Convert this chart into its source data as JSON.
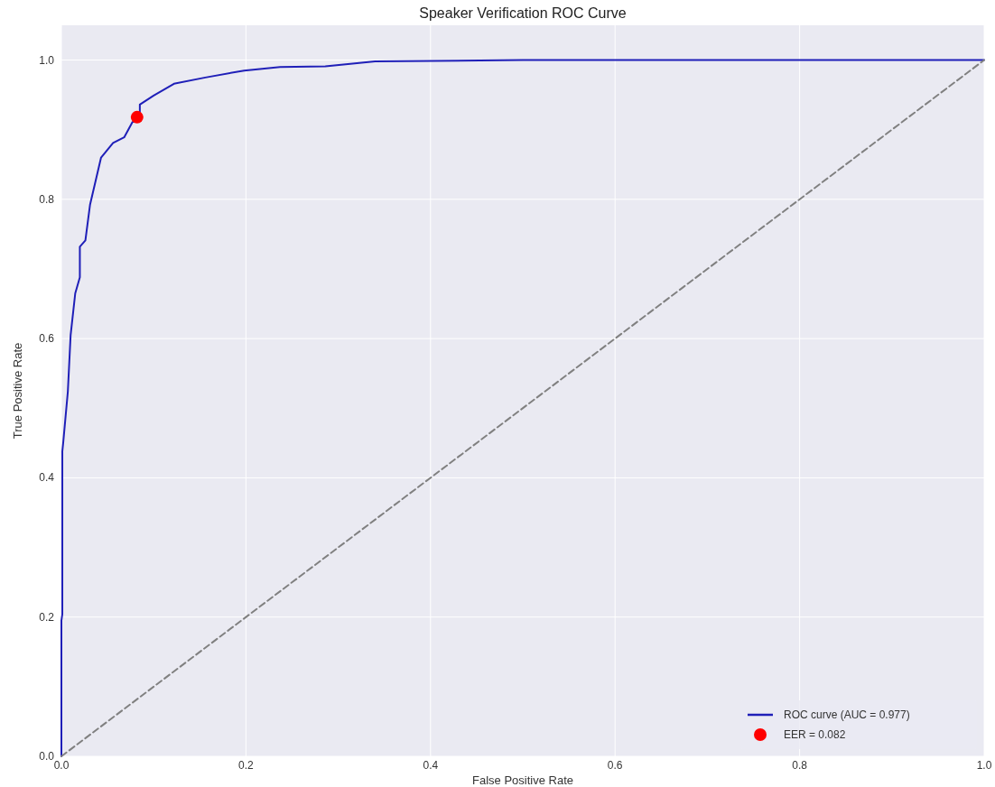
{
  "chart_data": {
    "type": "line",
    "title": "Speaker Verification ROC Curve",
    "xlabel": "False Positive Rate",
    "ylabel": "True Positive Rate",
    "xlim": [
      0,
      1
    ],
    "ylim": [
      0,
      1.05
    ],
    "xticks": [
      {
        "value": 0,
        "label": "0.0"
      },
      0.2,
      0.4,
      0.6,
      0.8,
      {
        "value": 1,
        "label": "1.0"
      }
    ],
    "yticks": [
      {
        "value": 0,
        "label": "0.0"
      },
      0.2,
      0.4,
      0.6,
      0.8,
      {
        "value": 1,
        "label": "1.0"
      }
    ],
    "grid": true,
    "legend": "bottom right",
    "series": [
      {
        "name": "ROC curve (AUC = 0.977)",
        "color": "#1f1fb8",
        "line_style": "solid",
        "x": [
          0,
          0,
          0.001,
          0.001,
          0.002,
          0.007,
          0.01,
          0.015,
          0.02,
          0.02,
          0.02,
          0.026,
          0.031,
          0.043,
          0.056,
          0.068,
          0.077,
          0.085,
          0.085,
          0.1,
          0.122,
          0.156,
          0.198,
          0.237,
          0.286,
          0.34,
          0.5,
          1
        ],
        "values": [
          0,
          0.195,
          0.204,
          0.438,
          0.451,
          0.524,
          0.605,
          0.665,
          0.688,
          0.706,
          0.732,
          0.741,
          0.792,
          0.86,
          0.881,
          0.889,
          0.911,
          0.914,
          0.936,
          0.949,
          0.966,
          0.975,
          0.985,
          0.99,
          0.991,
          0.998,
          1,
          1
        ]
      },
      {
        "color": "#808080",
        "line_style": "dashed",
        "x": [
          0,
          1
        ],
        "values": [
          0,
          1
        ]
      },
      {
        "name": "EER = 0.082",
        "type": "scatter",
        "color": "#ff0000",
        "marker": "circle",
        "x": [
          0.082
        ],
        "values": [
          0.918
        ]
      }
    ]
  }
}
